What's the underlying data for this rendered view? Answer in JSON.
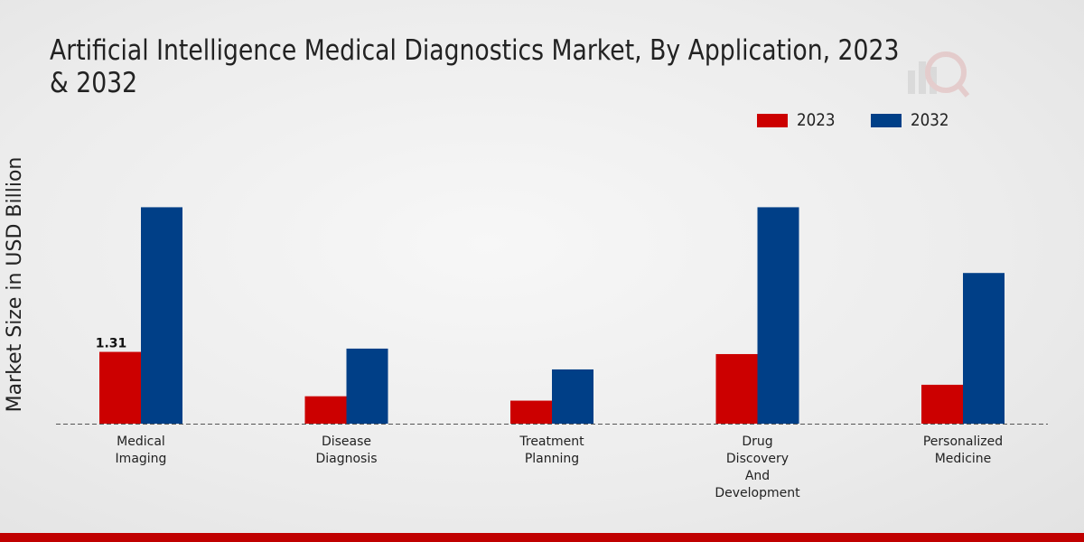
{
  "chart_data": {
    "type": "bar",
    "title": "Artificial Intelligence Medical Diagnostics Market, By Application, 2023 & 2032",
    "ylabel": "Market Size in USD Billion",
    "xlabel": "",
    "categories": [
      "Medical Imaging",
      "Disease Diagnosis",
      "Treatment Planning",
      "Drug Discovery And Development",
      "Personalized Medicine"
    ],
    "category_lines": [
      [
        "Medical",
        "Imaging"
      ],
      [
        "Disease",
        "Diagnosis"
      ],
      [
        "Treatment",
        "Planning"
      ],
      [
        "Drug",
        "Discovery",
        "And",
        "Development"
      ],
      [
        "Personalized",
        "Medicine"
      ]
    ],
    "series": [
      {
        "name": "2023",
        "color": "#cc0000",
        "values": [
          1.31,
          0.5,
          0.42,
          1.27,
          0.71
        ]
      },
      {
        "name": "2032",
        "color": "#003f87",
        "values": [
          3.95,
          1.37,
          0.99,
          3.95,
          2.75
        ]
      }
    ],
    "data_labels": [
      {
        "series": 0,
        "index": 0,
        "text": "1.31"
      }
    ],
    "ylim": [
      0,
      4.6
    ],
    "grid": false,
    "legend": "top-right"
  }
}
